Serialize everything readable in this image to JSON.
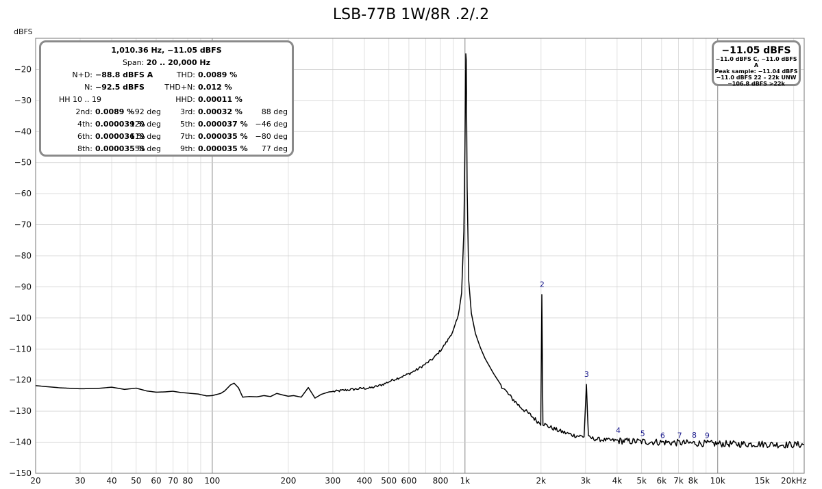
{
  "chart_data": {
    "type": "line",
    "title": "LSB-77B 1W/8R .2/.2",
    "ylabel": "dBFS",
    "xlabel": "",
    "x_scale": "log",
    "xlim": [
      20,
      22000
    ],
    "ylim": [
      -150,
      -10
    ],
    "grid": true,
    "x_ticks": [
      {
        "value": 20,
        "label": "20"
      },
      {
        "value": 30,
        "label": "30"
      },
      {
        "value": 40,
        "label": "40"
      },
      {
        "value": 50,
        "label": "50"
      },
      {
        "value": 60,
        "label": "60"
      },
      {
        "value": 70,
        "label": "70"
      },
      {
        "value": 80,
        "label": "80"
      },
      {
        "value": 100,
        "label": "100"
      },
      {
        "value": 200,
        "label": "200"
      },
      {
        "value": 300,
        "label": "300"
      },
      {
        "value": 400,
        "label": "400"
      },
      {
        "value": 500,
        "label": "500"
      },
      {
        "value": 600,
        "label": "600"
      },
      {
        "value": 800,
        "label": "800"
      },
      {
        "value": 1000,
        "label": "1k"
      },
      {
        "value": 2000,
        "label": "2k"
      },
      {
        "value": 3000,
        "label": "3k"
      },
      {
        "value": 4000,
        "label": "4k"
      },
      {
        "value": 5000,
        "label": "5k"
      },
      {
        "value": 6000,
        "label": "6k"
      },
      {
        "value": 7000,
        "label": "7k"
      },
      {
        "value": 8000,
        "label": "8k"
      },
      {
        "value": 10000,
        "label": "10k"
      },
      {
        "value": 15000,
        "label": "15k"
      },
      {
        "value": 20000,
        "label": "20kHz"
      }
    ],
    "y_ticks": [
      {
        "value": -20,
        "label": "-20"
      },
      {
        "value": -30,
        "label": "-30"
      },
      {
        "value": -40,
        "label": "-40"
      },
      {
        "value": -50,
        "label": "-50"
      },
      {
        "value": -60,
        "label": "-60"
      },
      {
        "value": -70,
        "label": "-70"
      },
      {
        "value": -80,
        "label": "-80"
      },
      {
        "value": -90,
        "label": "-90"
      },
      {
        "value": -100,
        "label": "-100"
      },
      {
        "value": -110,
        "label": "-110"
      },
      {
        "value": -120,
        "label": "-120"
      },
      {
        "value": -130,
        "label": "-130"
      },
      {
        "value": -140,
        "label": "-140"
      },
      {
        "value": -150,
        "label": "-150"
      }
    ],
    "series": [
      {
        "color": "#000000",
        "points": [
          [
            20,
            -121.8
          ],
          [
            25,
            -122.5
          ],
          [
            30,
            -122.8
          ],
          [
            35,
            -122.7
          ],
          [
            40,
            -122.3
          ],
          [
            45,
            -123.0
          ],
          [
            50,
            -122.6
          ],
          [
            55,
            -123.5
          ],
          [
            60,
            -123.9
          ],
          [
            65,
            -123.8
          ],
          [
            70,
            -123.6
          ],
          [
            75,
            -124.0
          ],
          [
            80,
            -124.2
          ],
          [
            88,
            -124.5
          ],
          [
            95,
            -125.1
          ],
          [
            100,
            -125.0
          ],
          [
            108,
            -124.3
          ],
          [
            112,
            -123.5
          ],
          [
            118,
            -121.6
          ],
          [
            122,
            -121.0
          ],
          [
            127,
            -122.5
          ],
          [
            132,
            -125.5
          ],
          [
            140,
            -125.3
          ],
          [
            150,
            -125.4
          ],
          [
            160,
            -125.0
          ],
          [
            170,
            -125.3
          ],
          [
            180,
            -124.3
          ],
          [
            190,
            -124.8
          ],
          [
            200,
            -125.2
          ],
          [
            210,
            -125.0
          ],
          [
            225,
            -125.5
          ],
          [
            240,
            -122.4
          ],
          [
            255,
            -125.8
          ],
          [
            270,
            -124.6
          ],
          [
            290,
            -123.8
          ],
          [
            310,
            -123.6
          ],
          [
            330,
            -123.3
          ],
          [
            360,
            -123.0
          ],
          [
            390,
            -122.7
          ],
          [
            420,
            -122.6
          ],
          [
            450,
            -122.0
          ],
          [
            480,
            -121.2
          ],
          [
            510,
            -120.2
          ],
          [
            550,
            -119.2
          ],
          [
            600,
            -118.0
          ],
          [
            650,
            -116.5
          ],
          [
            700,
            -114.8
          ],
          [
            750,
            -113.0
          ],
          [
            800,
            -110.5
          ],
          [
            850,
            -107.5
          ],
          [
            900,
            -104.0
          ],
          [
            940,
            -99.5
          ],
          [
            970,
            -92.0
          ],
          [
            990,
            -72.0
          ],
          [
            1000,
            -45.0
          ],
          [
            1008,
            -15.0
          ],
          [
            1012,
            -17.0
          ],
          [
            1020,
            -58.0
          ],
          [
            1035,
            -88.0
          ],
          [
            1060,
            -98.5
          ],
          [
            1100,
            -105.0
          ],
          [
            1150,
            -109.5
          ],
          [
            1200,
            -113.0
          ],
          [
            1300,
            -118.0
          ],
          [
            1400,
            -122.0
          ],
          [
            1500,
            -125.0
          ],
          [
            1650,
            -128.5
          ],
          [
            1800,
            -131.0
          ],
          [
            1950,
            -133.5
          ],
          [
            1995,
            -134.0
          ],
          [
            2015,
            -92.0
          ],
          [
            2035,
            -134.0
          ],
          [
            2150,
            -135.0
          ],
          [
            2300,
            -136.0
          ],
          [
            2500,
            -137.0
          ],
          [
            2700,
            -137.8
          ],
          [
            2960,
            -138.2
          ],
          [
            3025,
            -121.5
          ],
          [
            3080,
            -138.5
          ],
          [
            3300,
            -139.0
          ],
          [
            3600,
            -139.3
          ],
          [
            4000,
            -139.5
          ],
          [
            4500,
            -139.7
          ],
          [
            5000,
            -139.8
          ],
          [
            6000,
            -140.0
          ],
          [
            7000,
            -140.2
          ],
          [
            8000,
            -140.3
          ],
          [
            10000,
            -140.5
          ],
          [
            12000,
            -140.6
          ],
          [
            15000,
            -140.6
          ],
          [
            18000,
            -140.8
          ],
          [
            22000,
            -140.8
          ]
        ]
      }
    ],
    "annotations": [
      {
        "label": "2",
        "x": 2020,
        "y": -90
      },
      {
        "label": "3",
        "x": 3030,
        "y": -119
      },
      {
        "label": "4",
        "x": 4040,
        "y": -137
      },
      {
        "label": "5",
        "x": 5050,
        "y": -138
      },
      {
        "label": "6",
        "x": 6060,
        "y": -138.7
      },
      {
        "label": "7",
        "x": 7070,
        "y": -138.7
      },
      {
        "label": "8",
        "x": 8080,
        "y": -138.5
      },
      {
        "label": "9",
        "x": 9090,
        "y": -138.7
      }
    ]
  },
  "stats_box": {
    "header1": "1,010.36 Hz, −11.05 dBFS",
    "header2_label": "Span: ",
    "header2_value": "20 .. 20,000 Hz",
    "rows": [
      {
        "l_label": "N+D:",
        "l_value": "−88.8 dBFS A",
        "l_phase": "",
        "r_label": "THD:",
        "r_value": "0.0089 %",
        "r_phase": ""
      },
      {
        "l_label": "N:",
        "l_value": "−92.5 dBFS",
        "l_phase": "",
        "r_label": "THD+N:",
        "r_value": "0.012 %",
        "r_phase": ""
      },
      {
        "l_label": "HH 10 .. 19",
        "l_value": "",
        "l_phase": "",
        "r_label": "HHD:",
        "r_value": "0.00011 %",
        "r_phase": ""
      },
      {
        "l_label": "2nd:",
        "l_value": "0.0089 %",
        "l_phase": "−92 deg",
        "r_label": "3rd:",
        "r_value": "0.00032 %",
        "r_phase": "88 deg"
      },
      {
        "l_label": "4th:",
        "l_value": "0.000039 %",
        "l_phase": "120 deg",
        "r_label": "5th:",
        "r_value": "0.000037 %",
        "r_phase": "−46 deg"
      },
      {
        "l_label": "6th:",
        "l_value": "0.000036 %",
        "l_phase": "119 deg",
        "r_label": "7th:",
        "r_value": "0.000035 %",
        "r_phase": "−80 deg"
      },
      {
        "l_label": "8th:",
        "l_value": "0.000035 %",
        "l_phase": "58 deg",
        "r_label": "9th:",
        "r_value": "0.000035 %",
        "r_phase": "77 deg"
      }
    ]
  },
  "level_box": {
    "big": "−11.05 dBFS",
    "lines": [
      "−11.0 dBFS C, −11.0 dBFS A",
      "Peak sample: −11.04 dBFS",
      "−11.0 dBFS 22 – 22k UNW",
      "−106.8 dBFS >22k"
    ]
  }
}
